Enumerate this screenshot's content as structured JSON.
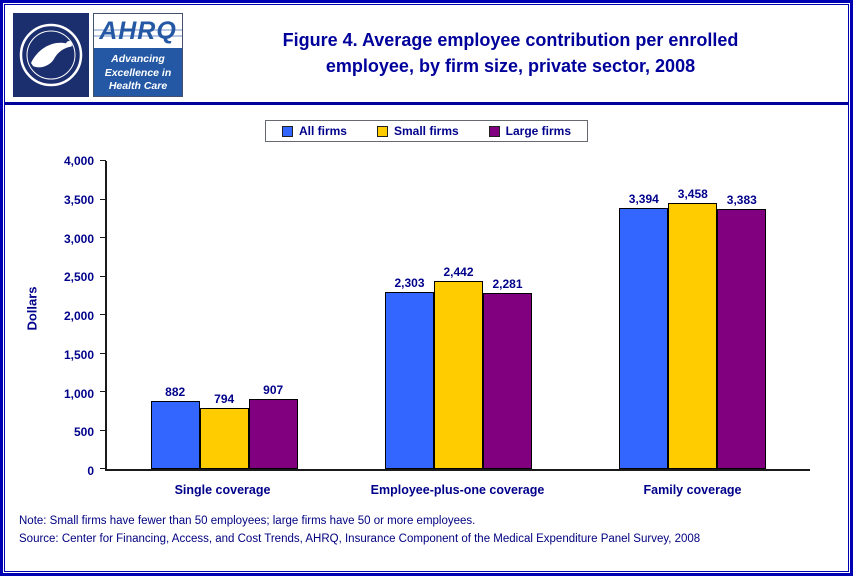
{
  "header": {
    "title_line1": "Figure 4. Average employee contribution per enrolled",
    "title_line2": "employee, by firm size, private sector, 2008",
    "ahrq_logo": {
      "acronym": "AHRQ",
      "tagline_line1": "Advancing",
      "tagline_line2": "Excellence in",
      "tagline_line3": "Health Care"
    }
  },
  "chart_data": {
    "type": "bar",
    "title": "Figure 4. Average employee contribution per enrolled employee, by firm size, private sector, 2008",
    "categories": [
      "Single coverage",
      "Employee-plus-one coverage",
      "Family coverage"
    ],
    "series": [
      {
        "name": "All firms",
        "color": "#3366FF",
        "values": [
          882,
          2303,
          3394
        ]
      },
      {
        "name": "Small firms",
        "color": "#FFCC00",
        "values": [
          794,
          2442,
          3458
        ]
      },
      {
        "name": "Large firms",
        "color": "#800080",
        "values": [
          907,
          2281,
          3383
        ]
      }
    ],
    "xlabel": "",
    "ylabel": "Dollars",
    "ylim": [
      0,
      4000
    ],
    "ytick_step": 500,
    "grid": false,
    "legend_position": "top",
    "value_labels": true
  },
  "footer": {
    "note": "Note: Small firms have fewer than 50 employees; large firms have 50 or more employees.",
    "source": "Source: Center for Financing, Access, and Cost Trends, AHRQ, Insurance Component of the Medical Expenditure Panel Survey, 2008"
  },
  "colors": {
    "navy_text": "#00008B",
    "title_blue": "#00009B",
    "border_blue": "#0000B3",
    "bar_blue": "#3366FF",
    "bar_yellow": "#FFCC00",
    "bar_purple": "#800080"
  }
}
